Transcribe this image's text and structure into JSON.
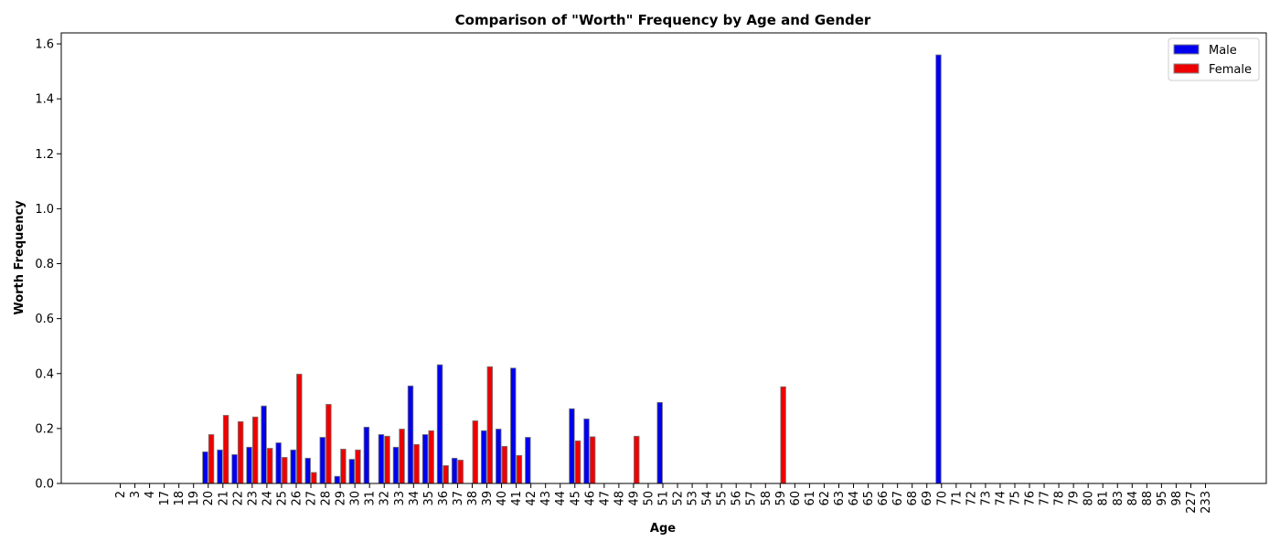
{
  "chart_data": {
    "type": "bar",
    "title": "Comparison of \"Worth\" Frequency by Age and Gender",
    "xlabel": "Age",
    "ylabel": "Worth Frequency",
    "ylim": [
      0,
      1.64
    ],
    "yticks": [
      "0.0",
      "0.2",
      "0.4",
      "0.6",
      "0.8",
      "1.0",
      "1.2",
      "1.4",
      "1.6"
    ],
    "legend_position": "top-right",
    "grid": false,
    "categories": [
      "2",
      "3",
      "4",
      "17",
      "18",
      "19",
      "20",
      "21",
      "22",
      "23",
      "24",
      "25",
      "26",
      "27",
      "28",
      "29",
      "30",
      "31",
      "32",
      "33",
      "34",
      "35",
      "36",
      "37",
      "38",
      "39",
      "40",
      "41",
      "42",
      "43",
      "44",
      "45",
      "46",
      "47",
      "48",
      "49",
      "50",
      "51",
      "52",
      "53",
      "54",
      "55",
      "56",
      "57",
      "58",
      "59",
      "60",
      "61",
      "62",
      "63",
      "64",
      "65",
      "66",
      "67",
      "68",
      "69",
      "70",
      "71",
      "72",
      "73",
      "74",
      "75",
      "76",
      "77",
      "78",
      "79",
      "80",
      "81",
      "83",
      "84",
      "88",
      "95",
      "98",
      "227",
      "233"
    ],
    "series": [
      {
        "name": "Male",
        "color": "#0000ee",
        "values": [
          0,
          0,
          0,
          0,
          0,
          0,
          0.115,
          0.122,
          0.105,
          0.132,
          0.282,
          0.148,
          0.122,
          0.092,
          0.168,
          0.026,
          0.088,
          0.205,
          0.178,
          0.132,
          0.355,
          0.178,
          0.432,
          0.092,
          0,
          0.192,
          0.198,
          0.42,
          0.168,
          0,
          0,
          0.272,
          0.235,
          0,
          0,
          0,
          0,
          0.295,
          0,
          0,
          0,
          0,
          0,
          0,
          0,
          0,
          0,
          0,
          0,
          0,
          0,
          0,
          0,
          0,
          0,
          0,
          1.56,
          0,
          0,
          0,
          0,
          0,
          0,
          0,
          0,
          0,
          0,
          0,
          0,
          0,
          0,
          0,
          0,
          0,
          0
        ]
      },
      {
        "name": "Female",
        "color": "#ee0000",
        "values": [
          0,
          0,
          0,
          0,
          0,
          0,
          0.178,
          0.248,
          0.225,
          0.242,
          0.128,
          0.095,
          0.398,
          0.04,
          0.288,
          0.125,
          0.122,
          0,
          0.172,
          0.198,
          0.142,
          0.192,
          0.065,
          0.085,
          0.228,
          0.425,
          0.135,
          0.102,
          0,
          0,
          0,
          0.155,
          0.17,
          0,
          0,
          0.172,
          0,
          0,
          0,
          0,
          0,
          0,
          0,
          0,
          0,
          0.352,
          0,
          0,
          0,
          0,
          0,
          0,
          0,
          0,
          0,
          0,
          0,
          0,
          0,
          0,
          0,
          0,
          0,
          0,
          0,
          0,
          0,
          0,
          0,
          0,
          0,
          0,
          0,
          0,
          0
        ]
      }
    ]
  }
}
